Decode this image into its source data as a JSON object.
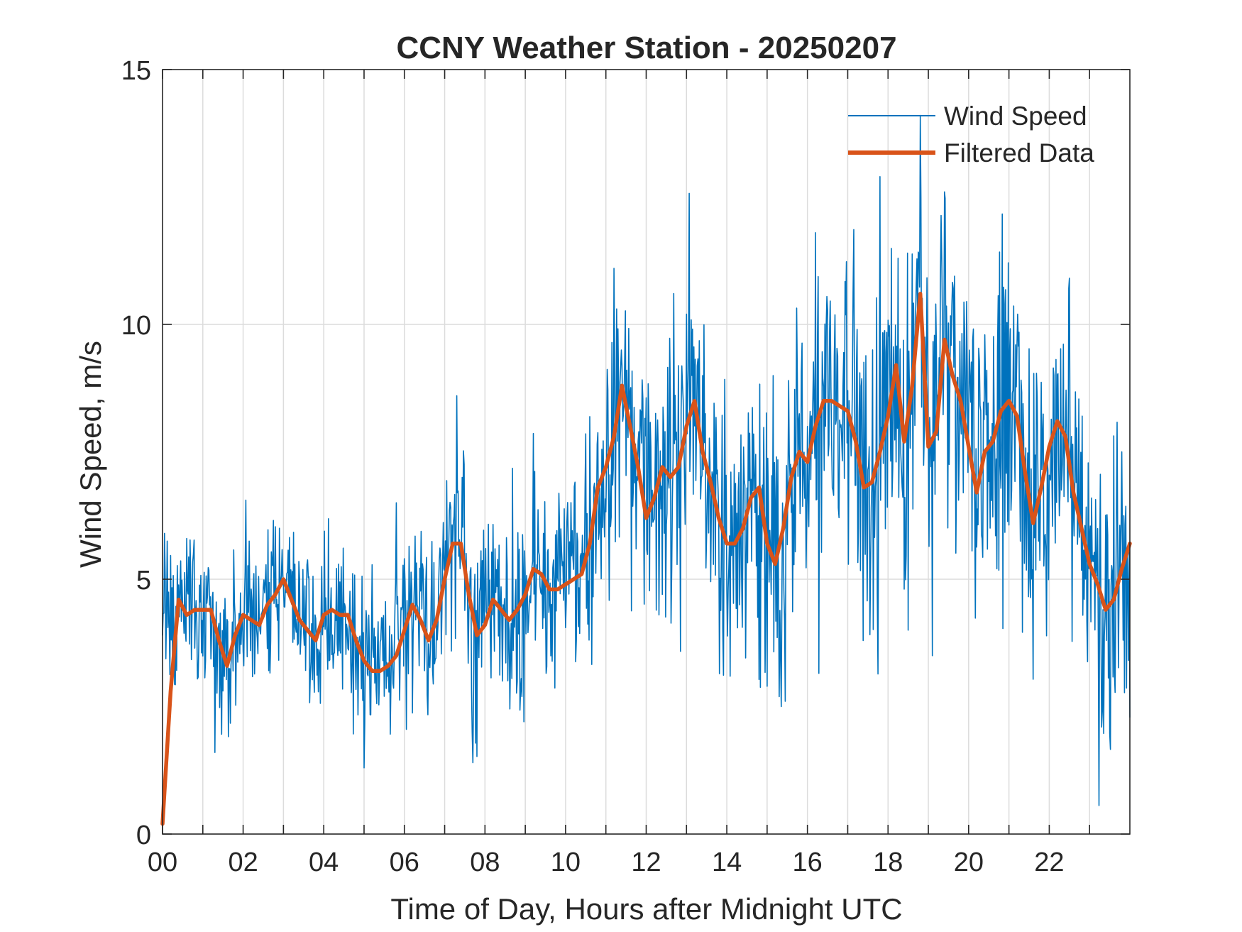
{
  "chart_data": {
    "type": "line",
    "title": "CCNY Weather Station - 20250207",
    "xlabel": "Time of Day, Hours after Midnight UTC",
    "ylabel": "Wind Speed, m/s",
    "xlim": [
      0,
      24
    ],
    "ylim": [
      0,
      15
    ],
    "x_ticks": [
      0,
      2,
      4,
      6,
      8,
      10,
      12,
      14,
      16,
      18,
      20,
      22
    ],
    "x_tick_labels": [
      "00",
      "02",
      "04",
      "06",
      "08",
      "10",
      "12",
      "14",
      "16",
      "18",
      "20",
      "22"
    ],
    "x_grid_step": 1,
    "y_ticks": [
      0,
      5,
      10,
      15
    ],
    "y_tick_labels": [
      "0",
      "5",
      "10",
      "15"
    ],
    "grid": true,
    "legend_position": "top-right",
    "series": [
      {
        "name": "Wind Speed",
        "color": "#0072BD",
        "style": "thin-noisy",
        "note_style": "high-frequency raw samples",
        "peaks": [
          [
            0.05,
            5.9
          ],
          [
            0.6,
            5.8
          ],
          [
            1.3,
            1.6
          ],
          [
            2.9,
            6.0
          ],
          [
            5.0,
            1.3
          ],
          [
            5.8,
            6.5
          ],
          [
            7.3,
            8.6
          ],
          [
            7.7,
            1.4
          ],
          [
            11.2,
            11.1
          ],
          [
            13.0,
            10.2
          ],
          [
            15.0,
            2.9
          ],
          [
            16.2,
            11.8
          ],
          [
            17.8,
            12.9
          ],
          [
            18.5,
            4.0
          ],
          [
            18.8,
            14.1
          ],
          [
            19.1,
            3.5
          ],
          [
            19.4,
            12.6
          ],
          [
            23.3,
            2.1
          ],
          [
            23.8,
            7.5
          ]
        ]
      },
      {
        "name": "Filtered Data",
        "color": "#D95319",
        "style": "thick",
        "x": [
          0,
          0.2,
          0.4,
          0.6,
          0.8,
          1.0,
          1.2,
          1.4,
          1.6,
          1.8,
          2.0,
          2.2,
          2.4,
          2.6,
          2.8,
          3.0,
          3.2,
          3.4,
          3.6,
          3.8,
          4.0,
          4.2,
          4.4,
          4.6,
          4.8,
          5.0,
          5.2,
          5.4,
          5.6,
          5.8,
          6.0,
          6.2,
          6.4,
          6.6,
          6.8,
          7.0,
          7.2,
          7.4,
          7.6,
          7.8,
          8.0,
          8.2,
          8.4,
          8.6,
          8.8,
          9.0,
          9.2,
          9.4,
          9.6,
          9.8,
          10.0,
          10.2,
          10.4,
          10.6,
          10.8,
          11.0,
          11.2,
          11.4,
          11.6,
          11.8,
          12.0,
          12.2,
          12.4,
          12.6,
          12.8,
          13.0,
          13.2,
          13.4,
          13.6,
          13.8,
          14.0,
          14.2,
          14.4,
          14.6,
          14.8,
          15.0,
          15.2,
          15.4,
          15.6,
          15.8,
          16.0,
          16.2,
          16.4,
          16.6,
          16.8,
          17.0,
          17.2,
          17.4,
          17.6,
          17.8,
          18.0,
          18.2,
          18.4,
          18.6,
          18.8,
          19.0,
          19.2,
          19.4,
          19.6,
          19.8,
          20.0,
          20.2,
          20.4,
          20.6,
          20.8,
          21.0,
          21.2,
          21.4,
          21.6,
          21.8,
          22.0,
          22.2,
          22.4,
          22.6,
          22.8,
          23.0,
          23.2,
          23.4,
          23.6,
          23.8,
          24.0
        ],
        "values": [
          0.2,
          2.8,
          4.6,
          4.3,
          4.4,
          4.4,
          4.4,
          3.8,
          3.3,
          3.9,
          4.3,
          4.2,
          4.1,
          4.5,
          4.7,
          5.0,
          4.6,
          4.2,
          4.0,
          3.8,
          4.3,
          4.4,
          4.3,
          4.3,
          3.8,
          3.4,
          3.2,
          3.2,
          3.3,
          3.5,
          4.0,
          4.5,
          4.2,
          3.8,
          4.2,
          5.0,
          5.7,
          5.7,
          4.7,
          3.9,
          4.1,
          4.6,
          4.4,
          4.2,
          4.4,
          4.7,
          5.2,
          5.1,
          4.8,
          4.8,
          4.9,
          5.0,
          5.1,
          5.7,
          6.8,
          7.2,
          7.8,
          8.8,
          8.0,
          7.2,
          6.2,
          6.6,
          7.2,
          7.0,
          7.2,
          8.0,
          8.5,
          7.5,
          6.9,
          6.2,
          5.7,
          5.7,
          6.0,
          6.6,
          6.8,
          5.7,
          5.3,
          6.0,
          7.0,
          7.5,
          7.3,
          8.0,
          8.5,
          8.5,
          8.4,
          8.3,
          7.7,
          6.8,
          6.9,
          7.5,
          8.2,
          9.2,
          7.7,
          8.8,
          10.6,
          7.6,
          7.9,
          9.7,
          9.0,
          8.5,
          7.6,
          6.7,
          7.5,
          7.7,
          8.3,
          8.5,
          8.2,
          7.1,
          6.1,
          6.8,
          7.6,
          8.1,
          7.8,
          6.7,
          6.0,
          5.3,
          4.9,
          4.4,
          4.6,
          5.2,
          5.7
        ]
      }
    ]
  }
}
